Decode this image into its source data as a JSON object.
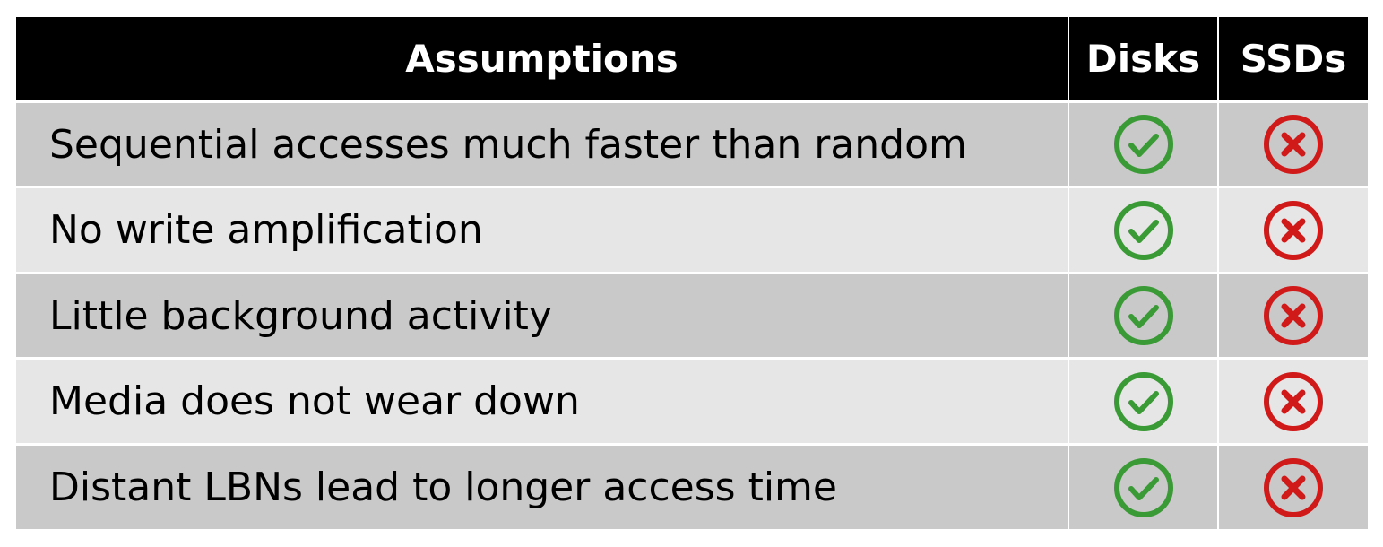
{
  "header": {
    "assumptions": "Assumptions",
    "disks": "Disks",
    "ssds": "SSDs"
  },
  "rows": [
    {
      "label": "Sequential accesses much faster than random",
      "disks": "check-icon",
      "ssds": "cross-icon"
    },
    {
      "label": "No write amplification",
      "disks": "check-icon",
      "ssds": "cross-icon"
    },
    {
      "label": "Little background activity",
      "disks": "check-icon",
      "ssds": "cross-icon"
    },
    {
      "label": "Media does not wear down",
      "disks": "check-icon",
      "ssds": "cross-icon"
    },
    {
      "label": "Distant LBNs lead to longer access time",
      "disks": "check-icon",
      "ssds": "cross-icon"
    }
  ],
  "colors": {
    "header_bg": "#000000",
    "header_text": "#ffffff",
    "row_dark": "#c9c9c9",
    "row_light": "#e6e6e6",
    "check": "#3a9a35",
    "cross": "#d01a1a"
  }
}
